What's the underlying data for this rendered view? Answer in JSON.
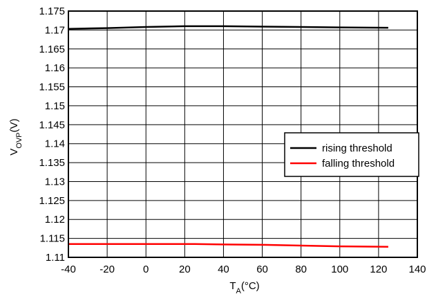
{
  "chart_data": {
    "type": "line",
    "x": [
      -40,
      -20,
      0,
      20,
      25,
      40,
      60,
      80,
      100,
      125
    ],
    "series": [
      {
        "name": "rising threshold",
        "color": "#000000",
        "values": [
          1.1703,
          1.1705,
          1.1708,
          1.171,
          1.171,
          1.171,
          1.1709,
          1.1708,
          1.1707,
          1.1706
        ]
      },
      {
        "name": "falling threshold",
        "color": "#ff0000",
        "values": [
          1.1135,
          1.1135,
          1.1135,
          1.1135,
          1.1135,
          1.1134,
          1.1133,
          1.1131,
          1.1129,
          1.1128
        ]
      }
    ],
    "xlim": [
      -40,
      140
    ],
    "ylim": [
      1.11,
      1.175
    ],
    "xticks": [
      "-40",
      "-20",
      "0",
      "20",
      "40",
      "60",
      "80",
      "100",
      "120",
      "140"
    ],
    "yticks": [
      "1.175",
      "1.17",
      "1.165",
      "1.16",
      "1.155",
      "1.15",
      "1.145",
      "1.14",
      "1.135",
      "1.13",
      "1.125",
      "1.12",
      "1.115",
      "1.11"
    ],
    "xlabel": {
      "main": "T",
      "sub": "A",
      "suffix": "(°C)"
    },
    "ylabel": {
      "main": "V",
      "sub": "OVP",
      "suffix": "(V)"
    },
    "grid": true,
    "legend_position": "right"
  }
}
